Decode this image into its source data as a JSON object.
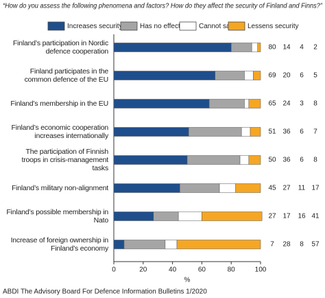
{
  "chart_data": {
    "type": "stacked_bar_horizontal",
    "title": "“How do you assess the following phenomena and factors? How do they affect the security of Finland and Finns?”",
    "categories": [
      "Finland’s participation in Nordic defence cooperation",
      "Finland participates in the common defence of the EU",
      "Finland’s membership in the EU",
      "Finland’s economic cooperation increases internationally",
      "The participation of Finnish troops in crisis-management tasks",
      "Finland’s military non-alignment",
      "Finland’s possible membership in Nato",
      "Increase of foreign ownership in Finland’s economy"
    ],
    "series": [
      {
        "name": "Increases security",
        "color": "#1f4e8c",
        "values": [
          80,
          69,
          65,
          51,
          50,
          45,
          27,
          7
        ]
      },
      {
        "name": "Has no effect",
        "color": "#a5a5a5",
        "values": [
          14,
          20,
          24,
          36,
          36,
          27,
          17,
          28
        ]
      },
      {
        "name": "Cannot say",
        "color": "#ffffff",
        "values": [
          4,
          6,
          3,
          6,
          6,
          11,
          16,
          8
        ]
      },
      {
        "name": "Lessens security",
        "color": "#f5a623",
        "values": [
          2,
          5,
          8,
          7,
          8,
          17,
          41,
          57
        ]
      }
    ],
    "xlim": [
      0,
      100
    ],
    "xticks": [
      0,
      20,
      40,
      60,
      80,
      100
    ],
    "xlabel": "%",
    "footer": "ABDI  The Advisory Board For Defence Information  Bulletins 1/2020"
  }
}
